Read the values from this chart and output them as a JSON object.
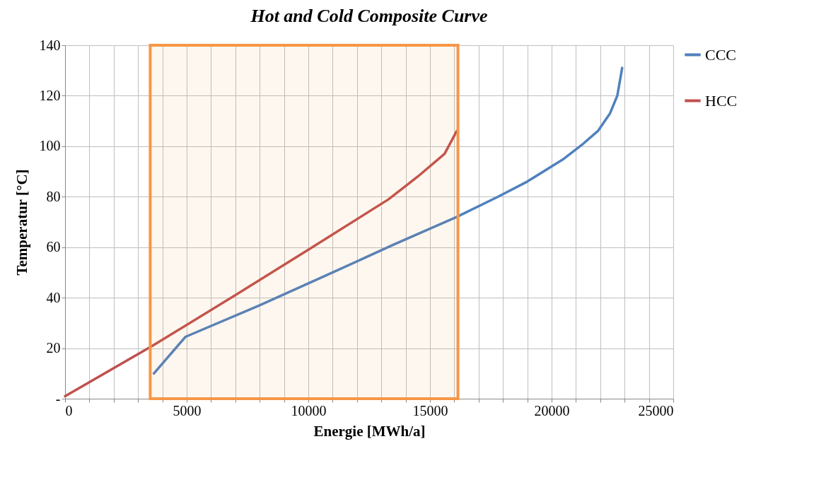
{
  "chart_data": {
    "type": "line",
    "title": "Hot and Cold Composite Curve",
    "xlabel": "Energie [MWh/a]",
    "ylabel": "Temperatur [°C]",
    "series": [
      {
        "name": "CCC",
        "color": "#4f81bd",
        "x": [
          3650,
          4950,
          8000,
          11000,
          13500,
          16100,
          17800,
          19000,
          20500,
          21300,
          21900,
          22400,
          22700,
          22900
        ],
        "values": [
          10,
          24.5,
          37,
          50,
          61,
          72,
          80,
          86,
          95,
          101,
          106,
          113,
          120,
          131
        ]
      },
      {
        "name": "HCC",
        "color": "#c0504d",
        "x": [
          0,
          3600,
          7000,
          10000,
          13300,
          14500,
          15600,
          16100
        ],
        "values": [
          1,
          21,
          41,
          59,
          79,
          88,
          97,
          106
        ]
      }
    ],
    "xlim": [
      0,
      25000
    ],
    "xticks": [
      0,
      {
        "value": 1000,
        "label": null
      },
      {
        "value": 2000,
        "label": null
      },
      {
        "value": 3000,
        "label": null
      },
      {
        "value": 4000,
        "label": null
      },
      5000,
      {
        "value": 6000,
        "label": null
      },
      {
        "value": 7000,
        "label": null
      },
      {
        "value": 8000,
        "label": null
      },
      {
        "value": 9000,
        "label": null
      },
      10000,
      {
        "value": 11000,
        "label": null
      },
      {
        "value": 12000,
        "label": null
      },
      {
        "value": 13000,
        "label": null
      },
      {
        "value": 14000,
        "label": null
      },
      15000,
      {
        "value": 16000,
        "label": null
      },
      {
        "value": 17000,
        "label": null
      },
      {
        "value": 18000,
        "label": null
      },
      {
        "value": 19000,
        "label": null
      },
      20000,
      {
        "value": 21000,
        "label": null
      },
      {
        "value": 22000,
        "label": null
      },
      {
        "value": 23000,
        "label": null
      },
      {
        "value": 24000,
        "label": null
      },
      25000
    ],
    "ylim": [
      0,
      140
    ],
    "yticks": [
      {
        "value": 0,
        "label": "-"
      },
      20,
      40,
      60,
      80,
      100,
      120,
      140
    ],
    "bands": [
      {
        "axis": "x",
        "from": 3500,
        "to": 16150,
        "color": "#f79646"
      }
    ],
    "grid": true,
    "legend": "right",
    "line_style": "solid",
    "marker": "none"
  }
}
